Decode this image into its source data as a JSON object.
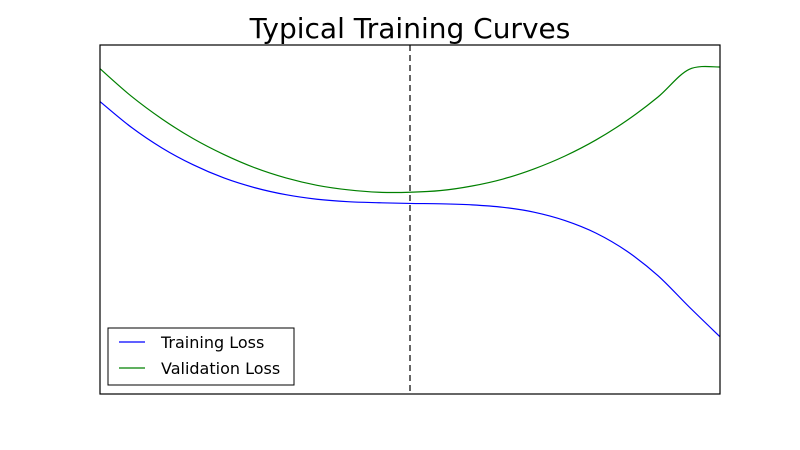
{
  "chart_data": {
    "type": "line",
    "title": "Typical Training Curves",
    "xlabel": "",
    "ylabel": "",
    "ticks_shown": false,
    "xlim": [
      0,
      1
    ],
    "ylim": [
      0,
      1
    ],
    "grid": false,
    "legend_position": "lower-left",
    "vline": {
      "x": 0.5,
      "style": "dashed",
      "color": "#000000"
    },
    "x": [
      0,
      0.05,
      0.1,
      0.15,
      0.2,
      0.25,
      0.3,
      0.35,
      0.4,
      0.45,
      0.5,
      0.55,
      0.6,
      0.65,
      0.7,
      0.75,
      0.8,
      0.85,
      0.9,
      0.95,
      1
    ],
    "series": [
      {
        "name": "Training Loss",
        "color": "#0000ff",
        "values": [
          0.838,
          0.765,
          0.705,
          0.657,
          0.619,
          0.591,
          0.571,
          0.558,
          0.551,
          0.548,
          0.546,
          0.545,
          0.542,
          0.535,
          0.521,
          0.497,
          0.461,
          0.409,
          0.339,
          0.25,
          0.164
        ]
      },
      {
        "name": "Validation Loss",
        "color": "#008000",
        "values": [
          0.932,
          0.854,
          0.788,
          0.732,
          0.686,
          0.648,
          0.619,
          0.598,
          0.585,
          0.578,
          0.578,
          0.583,
          0.596,
          0.616,
          0.645,
          0.682,
          0.728,
          0.784,
          0.851,
          0.93,
          0.937
        ]
      }
    ]
  }
}
